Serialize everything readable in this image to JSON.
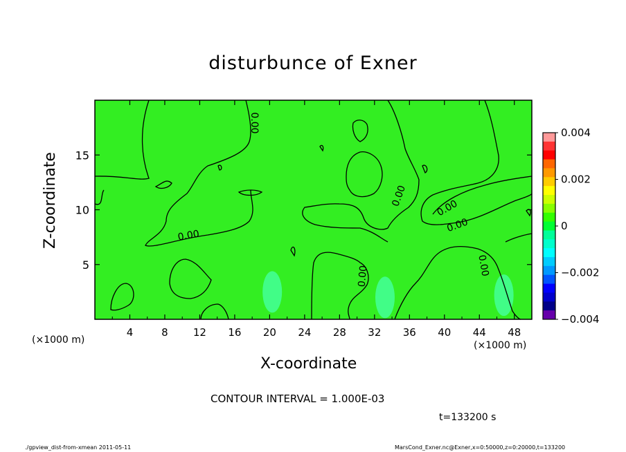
{
  "chart_data": {
    "type": "contour",
    "title": "disturbunce of Exner",
    "xlabel": "X-coordinate",
    "ylabel": "Z-coordinate",
    "x_unit": "(×1000 m)",
    "y_unit": "(×1000 m)",
    "xlim": [
      0,
      50
    ],
    "ylim": [
      0,
      20
    ],
    "x_ticks": [
      4,
      8,
      12,
      16,
      20,
      24,
      28,
      32,
      36,
      40,
      44,
      48
    ],
    "y_ticks": [
      5,
      10,
      15
    ],
    "contour_interval_text": "CONTOUR INTERVAL = 1.000E-03",
    "contour_labels": [
      "0.00",
      "0.00",
      "0.00",
      "0.00",
      "0.00",
      "0.00",
      "0.00"
    ],
    "colorbar": {
      "min": -0.004,
      "max": 0.004,
      "tick_labels": [
        "0.004",
        "0.002",
        "0",
        "−0.002",
        "−0.004"
      ],
      "tick_values": [
        0.004,
        0.002,
        0,
        -0.002,
        -0.004
      ],
      "colors": [
        "#ff9999",
        "#ff3333",
        "#ff0000",
        "#ff6600",
        "#ff9900",
        "#ffcc00",
        "#ffff00",
        "#ccff00",
        "#88ff00",
        "#33ff00",
        "#00ff33",
        "#00ff99",
        "#00ffcc",
        "#00ffff",
        "#00ccff",
        "#0099ff",
        "#0055ff",
        "#0000ff",
        "#0000cc",
        "#000088",
        "#6600aa"
      ]
    },
    "negative_cells": [
      {
        "x": 20.3,
        "z": 2.5,
        "value": -0.0004
      },
      {
        "x": 33.2,
        "z": 2.0,
        "value": -0.0006
      },
      {
        "x": 46.8,
        "z": 2.2,
        "value": -0.0006
      }
    ]
  },
  "time_label": "t=133200 s",
  "footer_left": "./gpview_dist-from-xmean  2011-05-11",
  "footer_right": "MarsCond_Exner.nc@Exner,x=0:50000,z=0:20000,t=133200",
  "colors": {
    "field": "#33ee22",
    "field_light": "#44ff33",
    "negative": "#44ff99"
  }
}
